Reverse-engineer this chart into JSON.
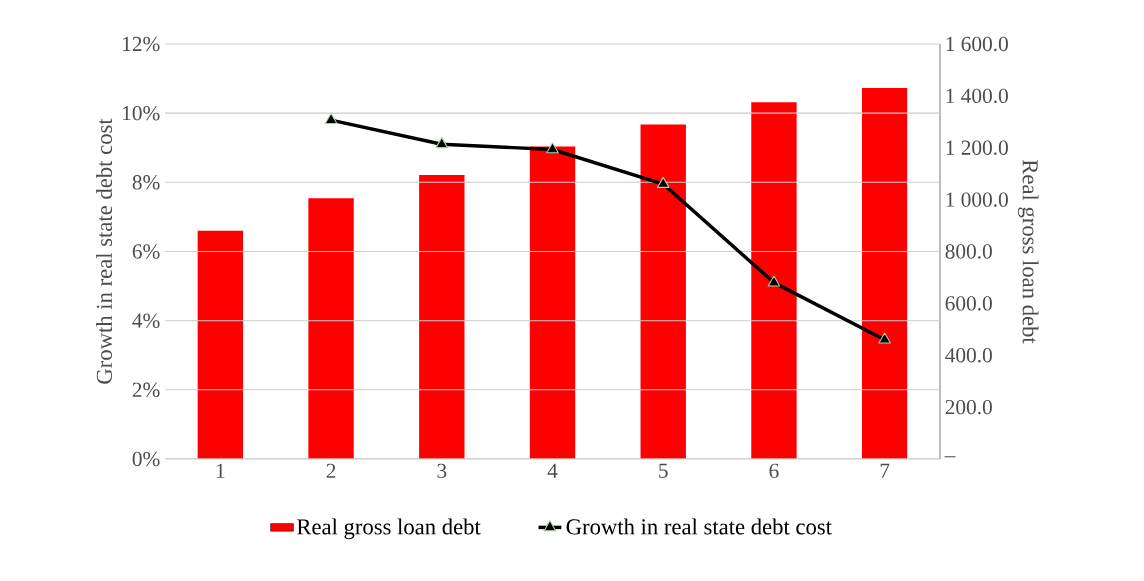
{
  "chart_data": {
    "type": "bar",
    "categories": [
      "1",
      "2",
      "3",
      "4",
      "5",
      "6",
      "7"
    ],
    "series": [
      {
        "name": "Real gross loan debt",
        "axis": "y2",
        "color": "#ff0000",
        "values": [
          880,
          1005,
          1095,
          1205,
          1290,
          1375,
          1430
        ]
      },
      {
        "name": "Growth in real state debt cost",
        "type": "line",
        "axis": "y",
        "color": "#000000",
        "marker": "triangle",
        "values": [
          null,
          9.8,
          9.1,
          8.95,
          7.95,
          5.1,
          3.45
        ]
      }
    ],
    "ylabel": "Growth in real state debt cost",
    "y2label": "Real gross loan debt",
    "ylim": [
      0,
      12
    ],
    "yticks": [
      {
        "value": 0,
        "label": "0%"
      },
      {
        "value": 2,
        "label": "2%"
      },
      {
        "value": 4,
        "label": "4%"
      },
      {
        "value": 6,
        "label": "6%"
      },
      {
        "value": 8,
        "label": "8%"
      },
      {
        "value": 10,
        "label": "10%"
      },
      {
        "value": 12,
        "label": "12%"
      }
    ],
    "y2lim": [
      0,
      1600
    ],
    "y2ticks": [
      {
        "value": 0,
        "label": "–"
      },
      {
        "value": 200,
        "label": "200.0"
      },
      {
        "value": 400,
        "label": "400.0"
      },
      {
        "value": 600,
        "label": "600.0"
      },
      {
        "value": 800,
        "label": "800.0"
      },
      {
        "value": 1000,
        "label": "1 000.0"
      },
      {
        "value": 1200,
        "label": "1 200.0"
      },
      {
        "value": 1400,
        "label": "1 400.0"
      },
      {
        "value": 1600,
        "label": "1 600.0"
      }
    ],
    "grid": "y",
    "legend": "bottom"
  }
}
